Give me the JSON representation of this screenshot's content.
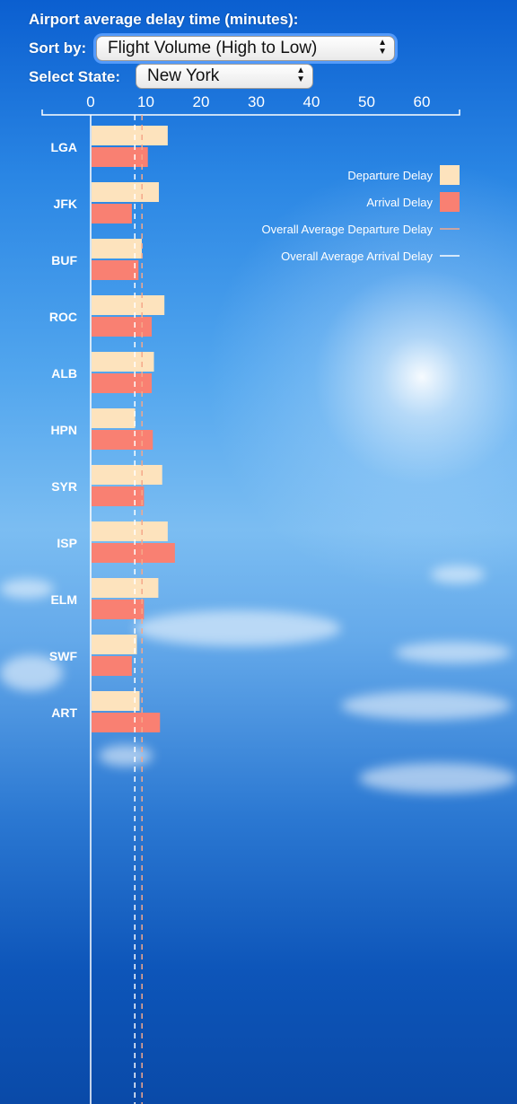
{
  "header": {
    "title": "Airport average delay time (minutes):",
    "sort_label": "Sort by:",
    "sort_value": "Flight Volume (High to Low)",
    "state_label": "Select State:",
    "state_value": "New York"
  },
  "legend": {
    "departure": "Departure Delay",
    "arrival": "Arrival Delay",
    "avg_departure": "Overall Average Departure Delay",
    "avg_arrival": "Overall Average Arrival Delay"
  },
  "colors": {
    "departure": "#fde3bd",
    "arrival": "#f98072",
    "avg_departure_line": "#f5a88a",
    "avg_arrival_line": "#ffffff"
  },
  "chart_data": {
    "type": "bar",
    "orientation": "horizontal",
    "categories": [
      "LGA",
      "JFK",
      "BUF",
      "ROC",
      "ALB",
      "HPN",
      "SYR",
      "ISP",
      "ELM",
      "SWF",
      "ART"
    ],
    "series": [
      {
        "name": "Departure Delay",
        "values": [
          13.8,
          12.2,
          9.1,
          13.2,
          11.3,
          7.9,
          12.8,
          13.8,
          12.1,
          8.2,
          8.7
        ]
      },
      {
        "name": "Arrival Delay",
        "values": [
          10.2,
          7.3,
          8.5,
          10.9,
          10.9,
          11.1,
          9.5,
          15.1,
          9.5,
          7.3,
          12.4
        ]
      }
    ],
    "reference_lines": [
      {
        "name": "Overall Average Departure Delay",
        "value": 9.3
      },
      {
        "name": "Overall Average Arrival Delay",
        "value": 8.0
      }
    ],
    "xticks": [
      0,
      10,
      20,
      30,
      40,
      50,
      60
    ],
    "xlim": [
      0,
      67
    ],
    "axis_position": "top",
    "legend_position": "top-right",
    "grid": false
  }
}
